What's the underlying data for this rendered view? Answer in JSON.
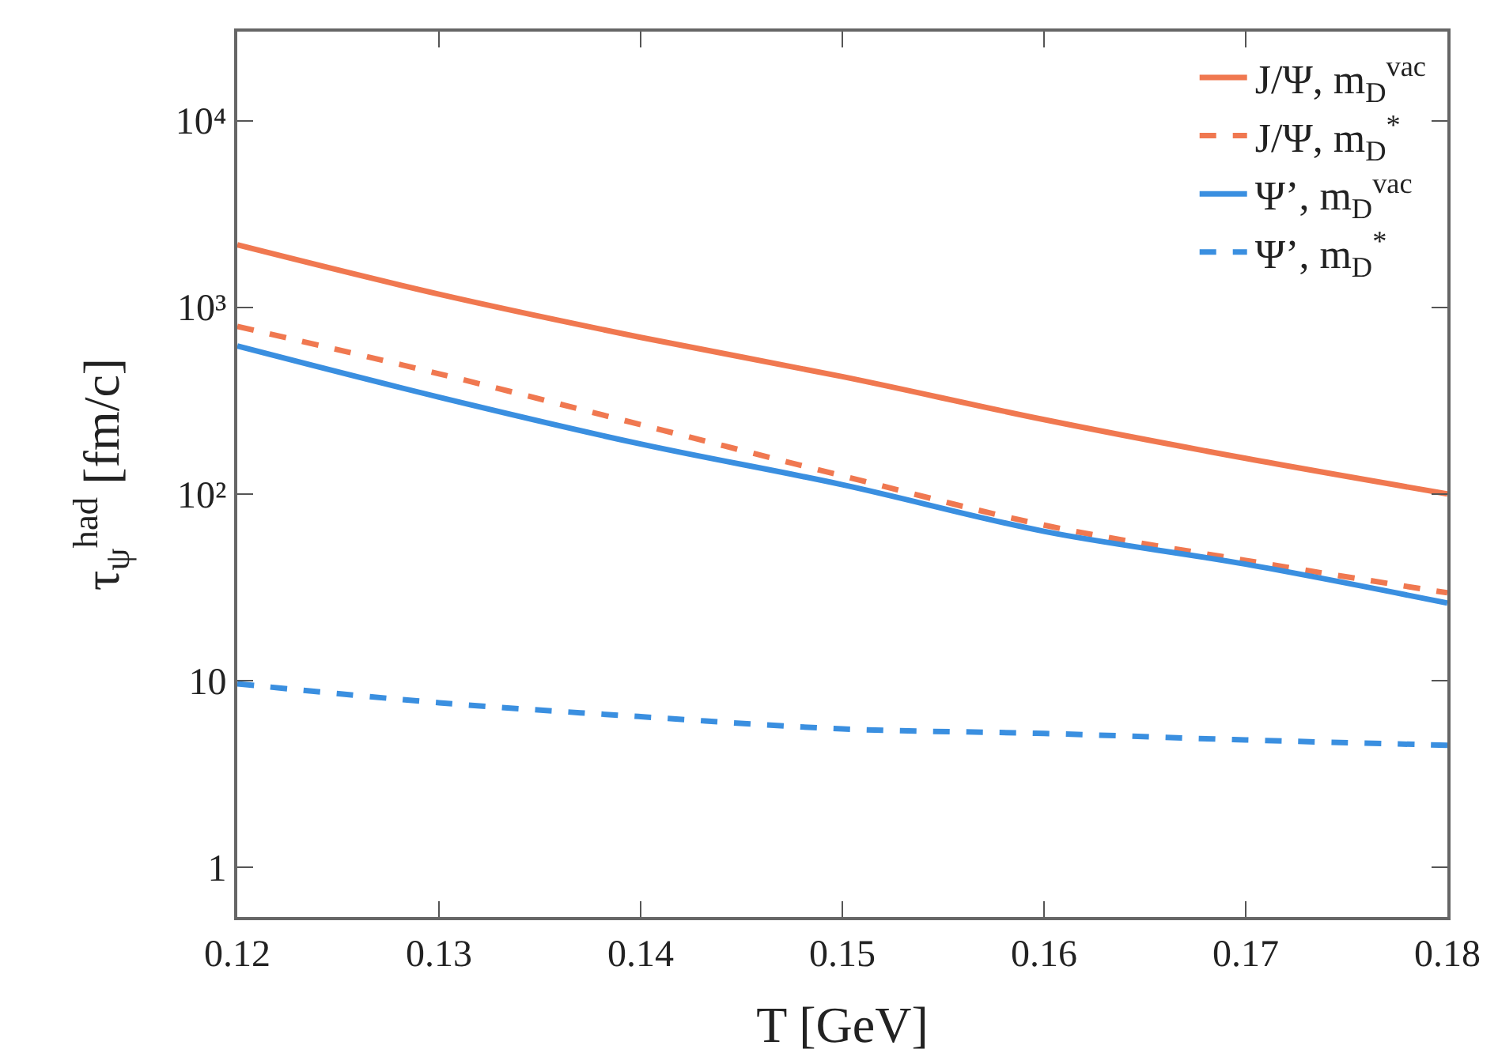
{
  "chart_data": {
    "type": "line",
    "xlabel": "T [GeV]",
    "ylabel": "τ$_{ψ}$$^{had}$ [fm/c]",
    "x": [
      0.12,
      0.13,
      0.14,
      0.15,
      0.16,
      0.17,
      0.18
    ],
    "series": [
      {
        "name": "J/Ψ, m$_{D}$$^{vac}$",
        "color": "#f07850",
        "line_style": "solid",
        "values": [
          2160,
          1175,
          690,
          425,
          250,
          155,
          100
        ]
      },
      {
        "name": "J/Ψ, m$_{D}$$^{*}$",
        "color": "#f07850",
        "line_style": "dashed",
        "values": [
          790,
          440,
          235,
          125,
          68,
          44,
          29.5
        ]
      },
      {
        "name": "Ψ’, m$_{D}$$^{vac}$",
        "color": "#3a8fe0",
        "line_style": "solid",
        "values": [
          620,
          330,
          185,
          112,
          63,
          42,
          26
        ]
      },
      {
        "name": "Ψ’, m$_{D}$$^{*}$",
        "color": "#3a8fe0",
        "line_style": "dashed",
        "values": [
          9.6,
          7.6,
          6.4,
          5.5,
          5.2,
          4.8,
          4.5
        ]
      }
    ],
    "xlim": [
      0.12,
      0.18
    ],
    "xticks": [
      0.12,
      0.13,
      0.14,
      0.15,
      0.16,
      0.17,
      0.18
    ],
    "ylim": [
      0.54,
      30000
    ],
    "yticks": [
      1,
      10,
      {
        "value": 100,
        "label": "10²"
      },
      {
        "value": 1000,
        "label": "10³"
      },
      {
        "value": 10000,
        "label": "10⁴"
      }
    ],
    "log": "y",
    "grid": false,
    "legend": "top right",
    "marker": "none"
  }
}
